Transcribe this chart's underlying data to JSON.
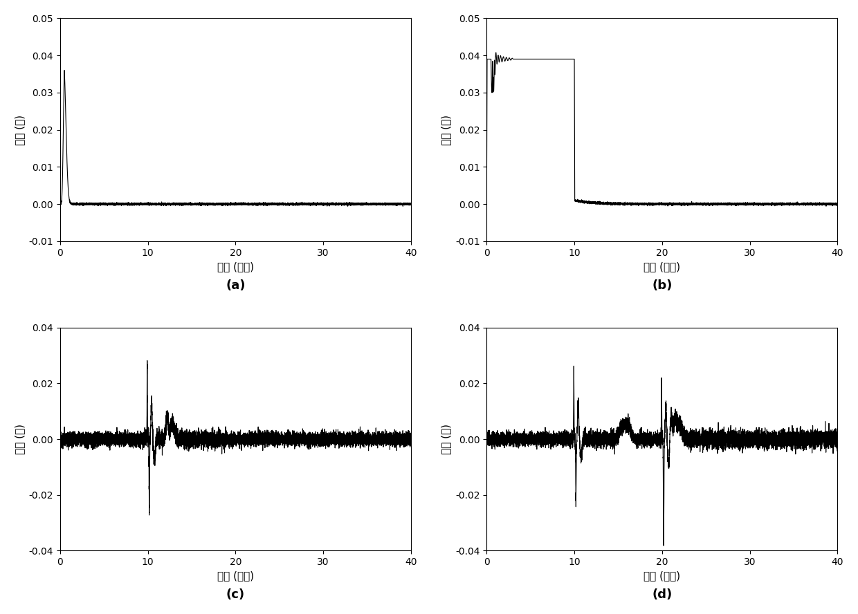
{
  "subplots": [
    {
      "label": "(a)",
      "xlabel": "时间 (微秒)",
      "ylabel": "幅値 (伏)",
      "xlim": [
        0,
        40
      ],
      "ylim": [
        -0.01,
        0.05
      ],
      "yticks": [
        -0.01,
        0,
        0.01,
        0.02,
        0.03,
        0.04,
        0.05
      ],
      "xticks": [
        0,
        10,
        20,
        30,
        40
      ]
    },
    {
      "label": "(b)",
      "xlabel": "时间 (微秒)",
      "ylabel": "幅値 (伏)",
      "xlim": [
        0,
        40
      ],
      "ylim": [
        -0.01,
        0.05
      ],
      "yticks": [
        -0.01,
        0,
        0.01,
        0.02,
        0.03,
        0.04,
        0.05
      ],
      "xticks": [
        0,
        10,
        20,
        30,
        40
      ]
    },
    {
      "label": "(c)",
      "xlabel": "时间 (微秒)",
      "ylabel": "幅値 (伏)",
      "xlim": [
        0,
        40
      ],
      "ylim": [
        -0.04,
        0.04
      ],
      "yticks": [
        -0.04,
        -0.02,
        0,
        0.02,
        0.04
      ],
      "xticks": [
        0,
        10,
        20,
        30,
        40
      ]
    },
    {
      "label": "(d)",
      "xlabel": "时间 (微秒)",
      "ylabel": "幅値 (伏)",
      "xlim": [
        0,
        40
      ],
      "ylim": [
        -0.04,
        0.04
      ],
      "yticks": [
        -0.04,
        -0.02,
        0,
        0.02,
        0.04
      ],
      "xticks": [
        0,
        10,
        20,
        30,
        40
      ]
    }
  ],
  "line_color": "#000000",
  "line_width": 0.8,
  "background_color": "#ffffff",
  "label_fontsize": 13,
  "tick_fontsize": 10,
  "axis_label_fontsize": 11
}
